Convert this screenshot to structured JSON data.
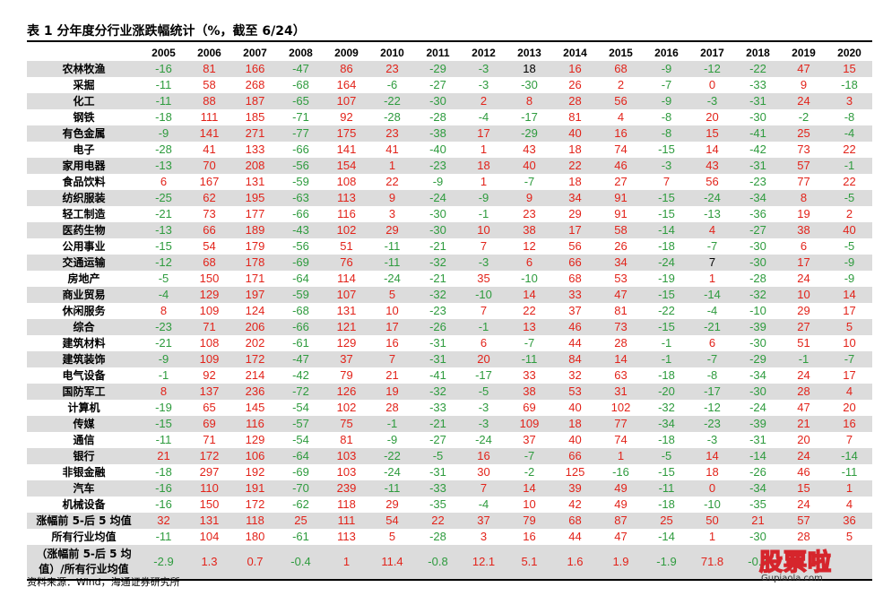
{
  "title": "表 1 分年度分行业涨跌幅统计（%，截至 6/24）",
  "source": "资料来源：Wind，海通证券研究所",
  "watermark": {
    "logo": "股票啦",
    "url": "Gupiaola.com"
  },
  "colors": {
    "positive": "#e2231a",
    "negative": "#2e9b3e",
    "stripe": "#dcdcdc"
  },
  "header": {
    "corner": "",
    "years": [
      "2005",
      "2006",
      "2007",
      "2008",
      "2009",
      "2010",
      "2011",
      "2012",
      "2013",
      "2014",
      "2015",
      "2016",
      "2017",
      "2018",
      "2019",
      "2020"
    ]
  },
  "rows": [
    {
      "label": "农林牧渔",
      "values": [
        "-16",
        "81",
        "166",
        "-47",
        "86",
        "23",
        "-29",
        "-3",
        "18",
        "16",
        "68",
        "-9",
        "-12",
        "-22",
        "47",
        "15"
      ]
    },
    {
      "label": "采掘",
      "values": [
        "-11",
        "58",
        "268",
        "-68",
        "164",
        "-6",
        "-27",
        "-3",
        "-30",
        "26",
        "2",
        "-7",
        "0",
        "-33",
        "9",
        "-18"
      ]
    },
    {
      "label": "化工",
      "values": [
        "-11",
        "88",
        "187",
        "-65",
        "107",
        "-22",
        "-30",
        "2",
        "8",
        "28",
        "56",
        "-9",
        "-3",
        "-31",
        "24",
        "3"
      ]
    },
    {
      "label": "钢铁",
      "values": [
        "-18",
        "111",
        "185",
        "-71",
        "92",
        "-28",
        "-28",
        "-4",
        "-17",
        "81",
        "4",
        "-8",
        "20",
        "-30",
        "-2",
        "-8"
      ]
    },
    {
      "label": "有色金属",
      "values": [
        "-9",
        "141",
        "271",
        "-77",
        "175",
        "23",
        "-38",
        "17",
        "-29",
        "40",
        "16",
        "-8",
        "15",
        "-41",
        "25",
        "-4"
      ]
    },
    {
      "label": "电子",
      "values": [
        "-28",
        "41",
        "133",
        "-66",
        "141",
        "41",
        "-40",
        "1",
        "43",
        "18",
        "74",
        "-15",
        "14",
        "-42",
        "73",
        "22"
      ]
    },
    {
      "label": "家用电器",
      "values": [
        "-13",
        "70",
        "208",
        "-56",
        "154",
        "1",
        "-23",
        "18",
        "40",
        "22",
        "46",
        "-3",
        "43",
        "-31",
        "57",
        "-1"
      ]
    },
    {
      "label": "食品饮料",
      "values": [
        "6",
        "167",
        "131",
        "-59",
        "108",
        "22",
        "-9",
        "1",
        "-7",
        "18",
        "27",
        "7",
        "56",
        "-23",
        "77",
        "22"
      ]
    },
    {
      "label": "纺织服装",
      "values": [
        "-25",
        "62",
        "195",
        "-63",
        "113",
        "9",
        "-24",
        "-9",
        "9",
        "34",
        "91",
        "-15",
        "-24",
        "-34",
        "8",
        "-5"
      ]
    },
    {
      "label": "轻工制造",
      "values": [
        "-21",
        "73",
        "177",
        "-66",
        "116",
        "3",
        "-30",
        "-1",
        "23",
        "29",
        "91",
        "-15",
        "-13",
        "-36",
        "19",
        "2"
      ]
    },
    {
      "label": "医药生物",
      "values": [
        "-13",
        "66",
        "189",
        "-43",
        "102",
        "29",
        "-30",
        "10",
        "38",
        "17",
        "58",
        "-14",
        "4",
        "-27",
        "38",
        "40"
      ]
    },
    {
      "label": "公用事业",
      "values": [
        "-15",
        "54",
        "179",
        "-56",
        "51",
        "-11",
        "-21",
        "7",
        "12",
        "56",
        "26",
        "-18",
        "-7",
        "-30",
        "6",
        "-5"
      ]
    },
    {
      "label": "交通运输",
      "values": [
        "-12",
        "68",
        "178",
        "-69",
        "76",
        "-11",
        "-32",
        "-3",
        "6",
        "66",
        "34",
        "-24",
        "7",
        "-30",
        "17",
        "-9"
      ]
    },
    {
      "label": "房地产",
      "values": [
        "-5",
        "150",
        "171",
        "-64",
        "114",
        "-24",
        "-21",
        "35",
        "-10",
        "68",
        "53",
        "-19",
        "1",
        "-28",
        "24",
        "-9"
      ]
    },
    {
      "label": "商业贸易",
      "values": [
        "-4",
        "129",
        "197",
        "-59",
        "107",
        "5",
        "-32",
        "-10",
        "14",
        "33",
        "47",
        "-15",
        "-14",
        "-32",
        "10",
        "14"
      ]
    },
    {
      "label": "休闲服务",
      "values": [
        "8",
        "109",
        "124",
        "-68",
        "131",
        "10",
        "-23",
        "7",
        "22",
        "37",
        "81",
        "-22",
        "-4",
        "-10",
        "29",
        "17"
      ]
    },
    {
      "label": "综合",
      "values": [
        "-23",
        "71",
        "206",
        "-66",
        "121",
        "17",
        "-26",
        "-1",
        "13",
        "46",
        "73",
        "-15",
        "-21",
        "-39",
        "27",
        "5"
      ]
    },
    {
      "label": "建筑材料",
      "values": [
        "-21",
        "108",
        "202",
        "-61",
        "129",
        "16",
        "-31",
        "6",
        "-7",
        "44",
        "28",
        "-1",
        "6",
        "-30",
        "51",
        "10"
      ]
    },
    {
      "label": "建筑装饰",
      "values": [
        "-9",
        "109",
        "172",
        "-47",
        "37",
        "7",
        "-31",
        "20",
        "-11",
        "84",
        "14",
        "-1",
        "-7",
        "-29",
        "-1",
        "-7"
      ]
    },
    {
      "label": "电气设备",
      "values": [
        "-1",
        "92",
        "214",
        "-42",
        "79",
        "21",
        "-41",
        "-17",
        "33",
        "32",
        "63",
        "-18",
        "-8",
        "-34",
        "24",
        "17"
      ]
    },
    {
      "label": "国防军工",
      "values": [
        "8",
        "137",
        "236",
        "-72",
        "126",
        "19",
        "-32",
        "-5",
        "38",
        "53",
        "31",
        "-20",
        "-17",
        "-30",
        "28",
        "4"
      ]
    },
    {
      "label": "计算机",
      "values": [
        "-19",
        "65",
        "145",
        "-54",
        "102",
        "28",
        "-33",
        "-3",
        "69",
        "40",
        "102",
        "-32",
        "-12",
        "-24",
        "47",
        "20"
      ]
    },
    {
      "label": "传媒",
      "values": [
        "-15",
        "69",
        "116",
        "-57",
        "75",
        "-1",
        "-21",
        "-3",
        "109",
        "18",
        "77",
        "-34",
        "-23",
        "-39",
        "21",
        "16"
      ]
    },
    {
      "label": "通信",
      "values": [
        "-11",
        "71",
        "129",
        "-54",
        "81",
        "-9",
        "-27",
        "-24",
        "37",
        "40",
        "74",
        "-18",
        "-3",
        "-31",
        "20",
        "7"
      ]
    },
    {
      "label": "银行",
      "values": [
        "21",
        "172",
        "106",
        "-64",
        "103",
        "-22",
        "-5",
        "16",
        "-7",
        "66",
        "1",
        "-5",
        "14",
        "-14",
        "24",
        "-14"
      ]
    },
    {
      "label": "非银金融",
      "values": [
        "-18",
        "297",
        "192",
        "-69",
        "103",
        "-24",
        "-31",
        "30",
        "-2",
        "125",
        "-16",
        "-15",
        "18",
        "-26",
        "46",
        "-11"
      ]
    },
    {
      "label": "汽车",
      "values": [
        "-16",
        "110",
        "191",
        "-70",
        "239",
        "-11",
        "-33",
        "7",
        "14",
        "39",
        "49",
        "-11",
        "0",
        "-34",
        "15",
        "1"
      ]
    },
    {
      "label": "机械设备",
      "values": [
        "-16",
        "150",
        "172",
        "-62",
        "118",
        "29",
        "-35",
        "-4",
        "10",
        "42",
        "49",
        "-18",
        "-10",
        "-35",
        "24",
        "4"
      ]
    },
    {
      "label": "涨幅前 5-后 5 均值",
      "values": [
        "32",
        "131",
        "118",
        "25",
        "111",
        "54",
        "22",
        "37",
        "79",
        "68",
        "87",
        "25",
        "50",
        "21",
        "57",
        "36"
      ]
    },
    {
      "label": "所有行业均值",
      "values": [
        "-11",
        "104",
        "180",
        "-61",
        "113",
        "5",
        "-28",
        "3",
        "16",
        "44",
        "47",
        "-14",
        "1",
        "-30",
        "28",
        "5"
      ]
    },
    {
      "label": "（涨幅前 5-后 5 均值）/所有行业均值",
      "multiline": true,
      "values": [
        "-2.9",
        "1.3",
        "0.7",
        "-0.4",
        "1",
        "11.4",
        "-0.8",
        "12.1",
        "5.1",
        "1.6",
        "1.9",
        "-1.9",
        "71.8",
        "-0.7",
        "",
        ""
      ]
    }
  ]
}
